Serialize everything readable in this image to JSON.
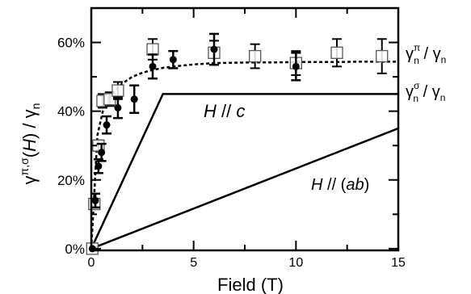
{
  "chart_data": {
    "type": "scatter",
    "xlabel": "Field (T)",
    "ylabel": "γ^{π,σ}(H) / γ_n",
    "xlim": [
      0,
      15
    ],
    "ylim": [
      -0.5,
      70
    ],
    "x_ticks": [
      0,
      5,
      10,
      15
    ],
    "y_ticks": [
      0,
      20,
      40,
      60
    ],
    "y_tick_labels": [
      "0%",
      "20%",
      "40%",
      "60%"
    ],
    "series": [
      {
        "name": "γ^π_n / γ_n",
        "marker": "open-square",
        "points": [
          {
            "x": 0.05,
            "y": 0,
            "err": 0
          },
          {
            "x": 0.15,
            "y": 13,
            "err": 1.5
          },
          {
            "x": 0.35,
            "y": 30,
            "err": 1.5
          },
          {
            "x": 0.55,
            "y": 43,
            "err": 2
          },
          {
            "x": 0.9,
            "y": 43.5,
            "err": 2
          },
          {
            "x": 1.3,
            "y": 46,
            "err": 2.5
          },
          {
            "x": 3.0,
            "y": 58,
            "err": 3
          },
          {
            "x": 6.0,
            "y": 57,
            "err": 3.5
          },
          {
            "x": 8.0,
            "y": 56,
            "err": 3.5
          },
          {
            "x": 10.0,
            "y": 54,
            "err": 3.5
          },
          {
            "x": 12.0,
            "y": 57,
            "err": 4
          },
          {
            "x": 14.2,
            "y": 56,
            "err": 5
          }
        ]
      },
      {
        "name": "γ^σ_n / γ_n",
        "marker": "filled-circle",
        "points": [
          {
            "x": 0.05,
            "y": 0,
            "err": 0
          },
          {
            "x": 0.2,
            "y": 14,
            "err": 2
          },
          {
            "x": 0.35,
            "y": 24,
            "err": 2
          },
          {
            "x": 0.5,
            "y": 28,
            "err": 2.5
          },
          {
            "x": 0.75,
            "y": 36,
            "err": 2.5
          },
          {
            "x": 1.3,
            "y": 41,
            "err": 3
          },
          {
            "x": 2.1,
            "y": 43.5,
            "err": 4
          },
          {
            "x": 3.0,
            "y": 53,
            "err": 3.5
          },
          {
            "x": 4.0,
            "y": 55,
            "err": 2.5
          },
          {
            "x": 6.0,
            "y": 58,
            "err": 4.5
          },
          {
            "x": 10.0,
            "y": 53,
            "err": 4
          }
        ]
      }
    ],
    "fit_curve": {
      "style": "dashed",
      "x": [
        0,
        0.3,
        0.6,
        1.0,
        1.5,
        2.0,
        2.5,
        3.0,
        3.5,
        4,
        5,
        6,
        7,
        8,
        9,
        10,
        11,
        12,
        13,
        14,
        15
      ],
      "y": [
        0,
        33,
        41,
        45,
        48,
        50,
        51.2,
        52,
        52.6,
        53,
        53.6,
        54,
        54.1,
        54.2,
        54.2,
        54.3,
        54.3,
        54.3,
        54.4,
        54.4,
        54.4
      ]
    },
    "reference_lines": [
      {
        "label": "H // c",
        "x": [
          0,
          3.5,
          15
        ],
        "y": [
          0,
          45,
          45
        ]
      },
      {
        "label": "H // (ab)",
        "x": [
          0,
          15
        ],
        "y": [
          0,
          35
        ]
      }
    ],
    "annotations": {
      "pi_label_main": "γ",
      "pi_label_sup": "π",
      "pi_label_sub": "n",
      "pi_label_tail": " / γ",
      "pi_label_tail_sub": "n",
      "sigma_label_main": "γ",
      "sigma_label_sup": "σ",
      "sigma_label_sub": "n",
      "sigma_label_tail": " / γ",
      "sigma_label_tail_sub": "n",
      "hc_italic": "H",
      "hc_rest": " // ",
      "hc_axis": "c",
      "hab_italic": "H",
      "hab_rest": " // (",
      "hab_axis": "ab",
      "hab_close": ")"
    },
    "ylabel_parts": {
      "gamma": "γ",
      "sup": "π,σ",
      "open": "(",
      "h": "H",
      "close": ") / γ",
      "sub": "n"
    },
    "grid": false
  }
}
